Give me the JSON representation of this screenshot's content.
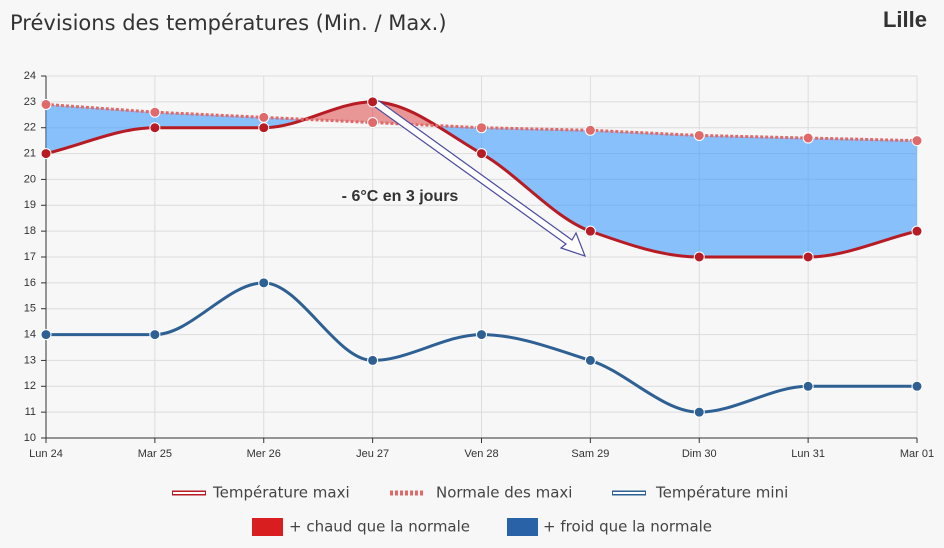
{
  "chart_data": {
    "type": "line",
    "title": "Prévisions des températures (Min. / Max.)",
    "location": "Lille",
    "categories": [
      "Lun 24",
      "Mar 25",
      "Mer 26",
      "Jeu 27",
      "Ven 28",
      "Sam 29",
      "Dim 30",
      "Lun 31",
      "Mar 01"
    ],
    "series": [
      {
        "name": "Température maxi",
        "color": "#b71c25",
        "style": "solid",
        "values": [
          21,
          22,
          22,
          23,
          21,
          18,
          17,
          17,
          18
        ]
      },
      {
        "name": "Normale des maxi",
        "color": "#e06a6a",
        "style": "dotted",
        "values": [
          22.9,
          22.6,
          22.4,
          22.2,
          22.0,
          21.9,
          21.7,
          21.6,
          21.5
        ]
      },
      {
        "name": "Température mini",
        "color": "#2f6094",
        "style": "solid",
        "values": [
          14,
          14,
          16,
          13,
          14,
          13,
          11,
          12,
          12
        ]
      }
    ],
    "fills": [
      {
        "name": "+ chaud que la normale",
        "color": "#d81e1e"
      },
      {
        "name": "+ froid que la normale",
        "color": "#2a62a8"
      }
    ],
    "annotation": "- 6°C en 3 jours",
    "ylim": [
      10,
      24
    ],
    "yticks": [
      10,
      11,
      12,
      13,
      14,
      15,
      16,
      17,
      18,
      19,
      20,
      21,
      22,
      23,
      24
    ],
    "grid": true
  }
}
